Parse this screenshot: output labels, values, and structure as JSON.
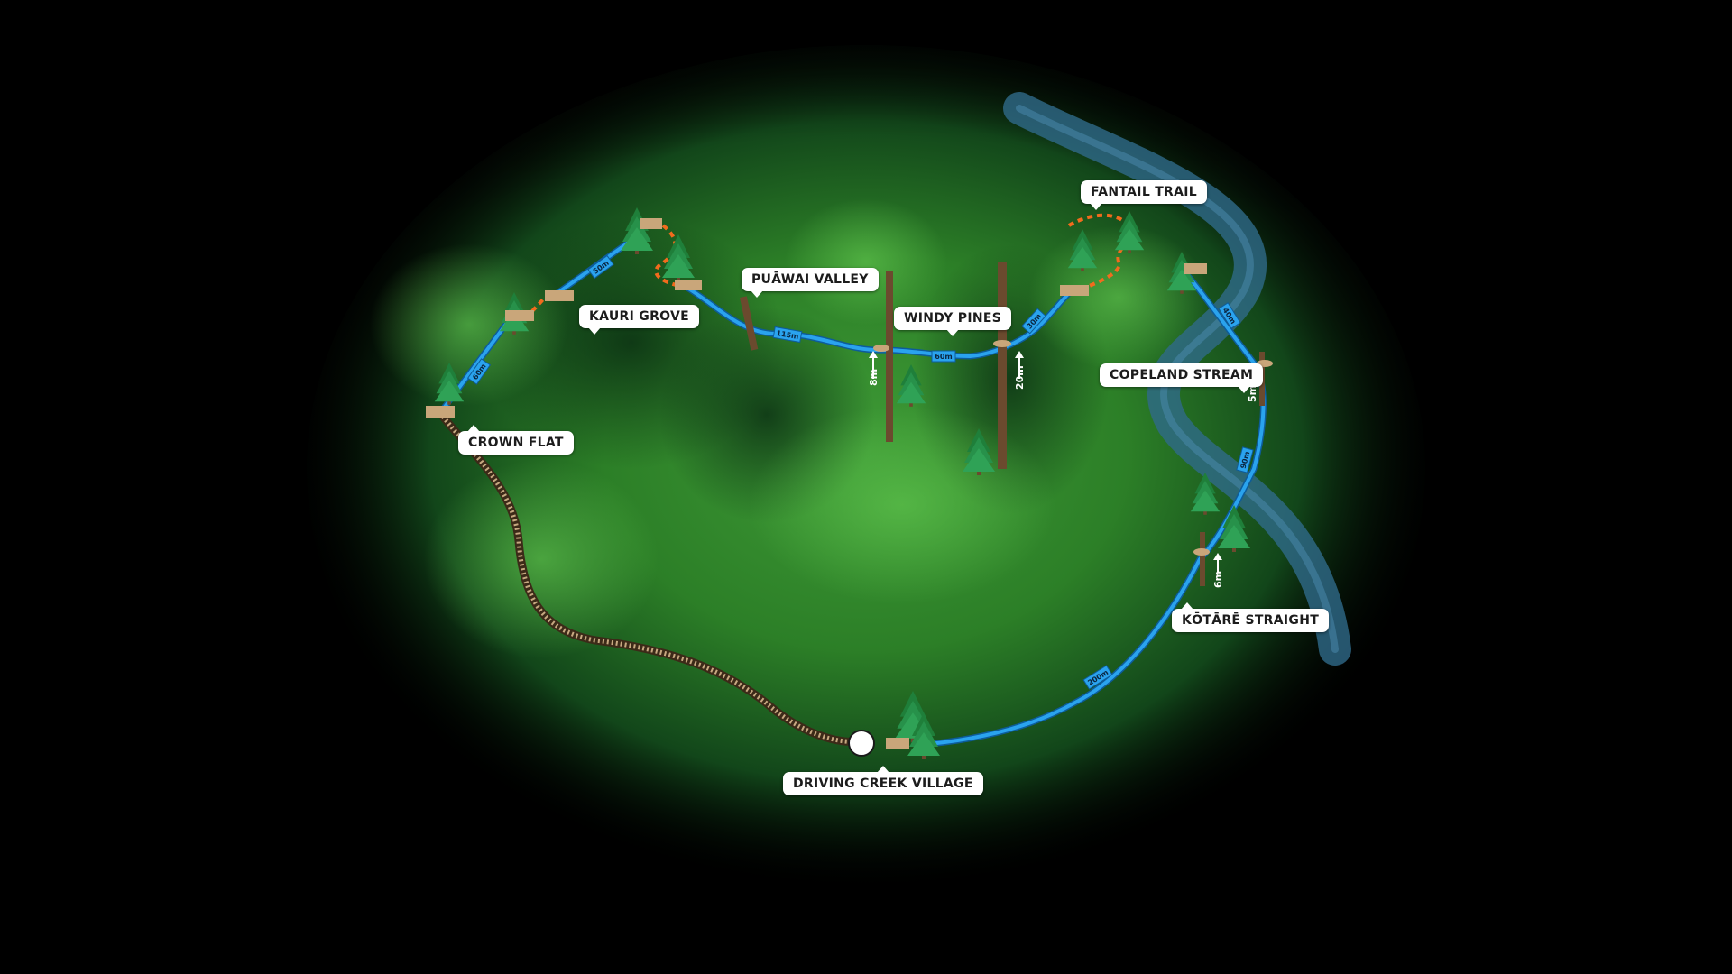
{
  "map": {
    "colors": {
      "zipline": "#2aa3ee",
      "zipline_outline": "#0d5c9a",
      "walk_trail": "#f26b1d",
      "railway": "#8a6b4a",
      "platform": "#c9a67a",
      "stream": "#2f6a8a",
      "forest": "#2f8f2a"
    },
    "locations": [
      {
        "id": "crown-flat",
        "label": "CROWN FLAT"
      },
      {
        "id": "kauri-grove",
        "label": "KAURI GROVE"
      },
      {
        "id": "puawai-valley",
        "label": "PUĀWAI VALLEY"
      },
      {
        "id": "windy-pines",
        "label": "WINDY PINES"
      },
      {
        "id": "fantail-trail",
        "label": "FANTAIL TRAIL"
      },
      {
        "id": "copeland-stream",
        "label": "COPELAND STREAM"
      },
      {
        "id": "kotare-straight",
        "label": "KŌTĀRĒ STRAIGHT"
      },
      {
        "id": "driving-creek-village",
        "label": "DRIVING CREEK VILLAGE"
      }
    ],
    "segments": [
      {
        "id": "seg-crown-kauri",
        "label": "60m"
      },
      {
        "id": "seg-kauri-top",
        "label": "50m"
      },
      {
        "id": "seg-puawai-windy",
        "label": "115m"
      },
      {
        "id": "seg-windy-mid",
        "label": "60m"
      },
      {
        "id": "seg-windy-fantail",
        "label": "30m"
      },
      {
        "id": "seg-fantail-copeland",
        "label": "40m"
      },
      {
        "id": "seg-copeland-kotare",
        "label": "90m"
      },
      {
        "id": "seg-kotare-village",
        "label": "200m"
      }
    ],
    "heights": [
      {
        "id": "h-windy-1",
        "label": "8m"
      },
      {
        "id": "h-windy-2",
        "label": "20m"
      },
      {
        "id": "h-copeland",
        "label": "5m"
      },
      {
        "id": "h-kotare",
        "label": "6m"
      }
    ]
  }
}
